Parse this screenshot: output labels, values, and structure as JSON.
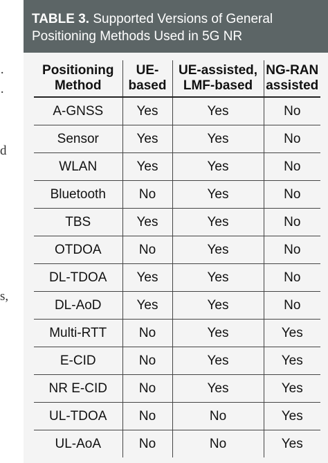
{
  "margin_fragments": [
    "·",
    "·",
    "d",
    "s,"
  ],
  "table": {
    "caption_label": "TABLE 3.",
    "caption_text": " Supported Versions of General Positioning Methods Used in 5G NR",
    "headers": [
      [
        "Positioning",
        "Method"
      ],
      [
        "UE-",
        "based"
      ],
      [
        "UE-assisted,",
        "LMF-based"
      ],
      [
        "NG-RAN",
        "assisted"
      ]
    ],
    "rows": [
      [
        "A-GNSS",
        "Yes",
        "Yes",
        "No"
      ],
      [
        "Sensor",
        "Yes",
        "Yes",
        "No"
      ],
      [
        "WLAN",
        "Yes",
        "Yes",
        "No"
      ],
      [
        "Bluetooth",
        "No",
        "Yes",
        "No"
      ],
      [
        "TBS",
        "Yes",
        "Yes",
        "No"
      ],
      [
        "OTDOA",
        "No",
        "Yes",
        "No"
      ],
      [
        "DL-TDOA",
        "Yes",
        "Yes",
        "No"
      ],
      [
        "DL-AoD",
        "Yes",
        "Yes",
        "No"
      ],
      [
        "Multi-RTT",
        "No",
        "Yes",
        "Yes"
      ],
      [
        "E-CID",
        "No",
        "Yes",
        "Yes"
      ],
      [
        "NR E-CID",
        "No",
        "Yes",
        "Yes"
      ],
      [
        "UL-TDOA",
        "No",
        "No",
        "Yes"
      ],
      [
        "UL-AoA",
        "No",
        "No",
        "Yes"
      ]
    ]
  },
  "colors": {
    "caption_background": "#5c6566",
    "caption_text": "#ffffff",
    "table_background": "#f4f4f4"
  }
}
